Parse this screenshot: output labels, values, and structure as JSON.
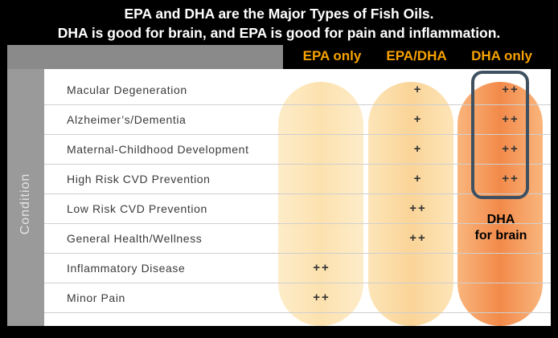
{
  "title": {
    "line1": "EPA and DHA are the Major Types of Fish Oils.",
    "line2": "DHA is good for brain, and EPA is good for pain and inflammation."
  },
  "columns": [
    "EPA only",
    "EPA/DHA",
    "DHA only"
  ],
  "sidebar_label": "Condition",
  "rows": [
    {
      "label": "Macular Degeneration",
      "epa": "",
      "both": "+",
      "dha": "++"
    },
    {
      "label": "Alzheimer’s/Dementia",
      "epa": "",
      "both": "+",
      "dha": "++"
    },
    {
      "label": "Maternal-Childhood Development",
      "epa": "",
      "both": "+",
      "dha": "++"
    },
    {
      "label": "High Risk CVD Prevention",
      "epa": "",
      "both": "+",
      "dha": "++"
    },
    {
      "label": "Low Risk CVD Prevention",
      "epa": "",
      "both": "++",
      "dha": ""
    },
    {
      "label": "General Health/Wellness",
      "epa": "",
      "both": "++",
      "dha": ""
    },
    {
      "label": "Inflammatory Disease",
      "epa": "++",
      "both": "",
      "dha": ""
    },
    {
      "label": "Minor Pain",
      "epa": "++",
      "both": "",
      "dha": ""
    }
  ],
  "annotation": {
    "line1": "DHA",
    "line2": "for brain"
  },
  "colors": {
    "header_text": "#f7a200",
    "highlight_border": "#3f5060"
  }
}
